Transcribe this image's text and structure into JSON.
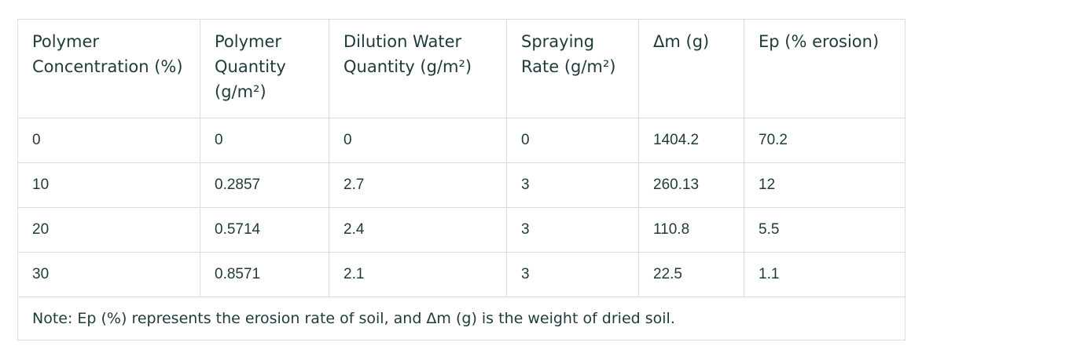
{
  "table": {
    "headers": [
      "Polymer Concentration (%)",
      "Polymer Quantity (g/m²)",
      "Dilution Water Quantity (g/m²)",
      "Spraying Rate (g/m²)",
      "Δm (g)",
      "Ep (% erosion)"
    ],
    "rows": [
      [
        "0",
        "0",
        "0",
        "0",
        "1404.2",
        "70.2"
      ],
      [
        "10",
        "0.2857",
        "2.7",
        "3",
        "260.13",
        "12"
      ],
      [
        "20",
        "0.5714",
        "2.4",
        "3",
        "110.8",
        "5.5"
      ],
      [
        "30",
        "0.8571",
        "2.1",
        "3",
        "22.5",
        "1.1"
      ]
    ],
    "note": "Note: Ep (%) represents the erosion rate of soil, and Δm (g) is the weight of dried soil."
  }
}
